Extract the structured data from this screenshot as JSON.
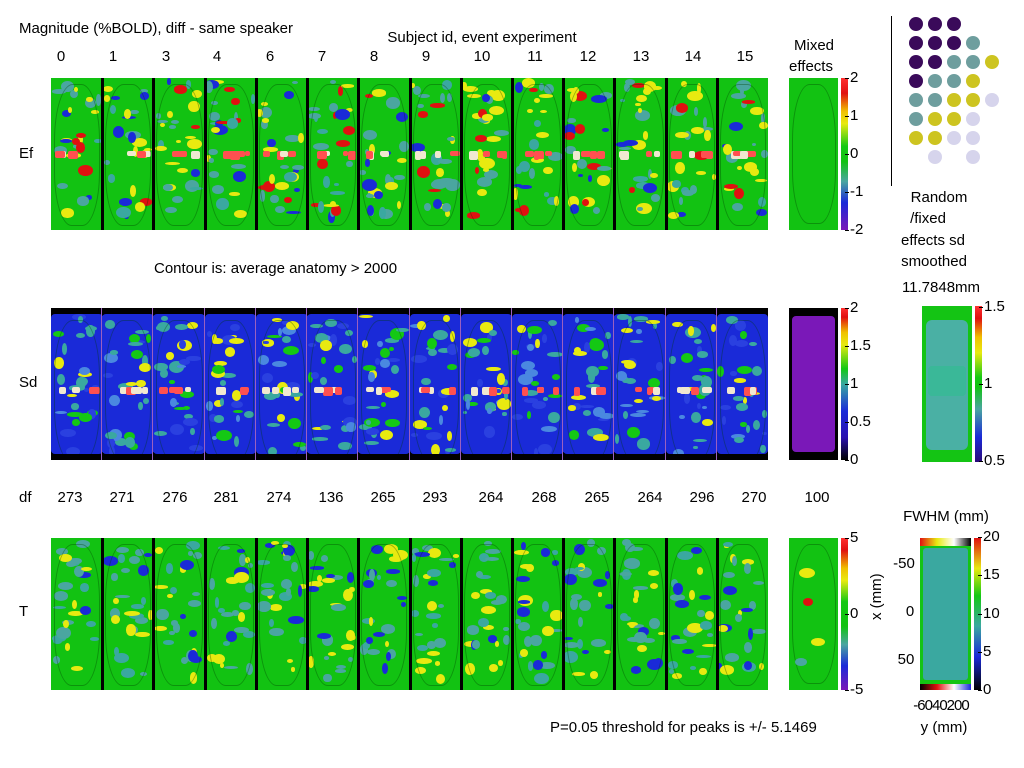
{
  "title": "Magnitude (%BOLD), diff - same speaker",
  "subtitle": "Subject id, event experiment",
  "subject_ids": [
    "0",
    "1",
    "3",
    "4",
    "6",
    "7",
    "8",
    "9",
    "10",
    "11",
    "12",
    "13",
    "14",
    "15"
  ],
  "mixed_effects_label": "Mixed effects",
  "rows": {
    "ef": "Ef",
    "sd": "Sd",
    "df": "df",
    "t": "T"
  },
  "df_values": [
    "273",
    "271",
    "276",
    "281",
    "274",
    "136",
    "265",
    "293",
    "264",
    "268",
    "265",
    "264",
    "296",
    "270"
  ],
  "df_mixed": "100",
  "contour_note": "Contour is: average anatomy > 2000",
  "ef_colorbar": [
    "2",
    "1",
    "0",
    "-1",
    "-2"
  ],
  "sd_colorbar": [
    "2",
    "1.5",
    "1",
    "0.5",
    "0"
  ],
  "t_colorbar": [
    "5",
    "0",
    "-5"
  ],
  "random_fixed_label": {
    "line1": "Random",
    "line2": "/fixed",
    "line3": "effects sd",
    "line4": "smoothed",
    "line5": "11.7848mm"
  },
  "rf_colorbar": [
    "1.5",
    "1",
    "0.5"
  ],
  "fwhm_label": "FWHM (mm)",
  "fwhm_colorbar": [
    "20",
    "15",
    "10",
    "5",
    "0"
  ],
  "fwhm_xaxis_label": "x (mm)",
  "fwhm_yaxis_label": "y (mm)",
  "fwhm_x_ticks": [
    "-50",
    "0",
    "50"
  ],
  "fwhm_y_ticks": "-6040200",
  "threshold_note": "P=0.05 threshold for peaks is +/- 5.1469",
  "colors": {
    "green": "#11c611",
    "teal": "#4aa6a0",
    "blue": "#1a2ad8",
    "yellow": "#e6e800",
    "red": "#e01010",
    "purple": "#7a18b8"
  },
  "dot_colors": {
    "dark_purple": "#3a0a5a",
    "teal": "#6e9e9e",
    "yellow": "#cdc420",
    "lavender": "#d6d4ec"
  }
}
